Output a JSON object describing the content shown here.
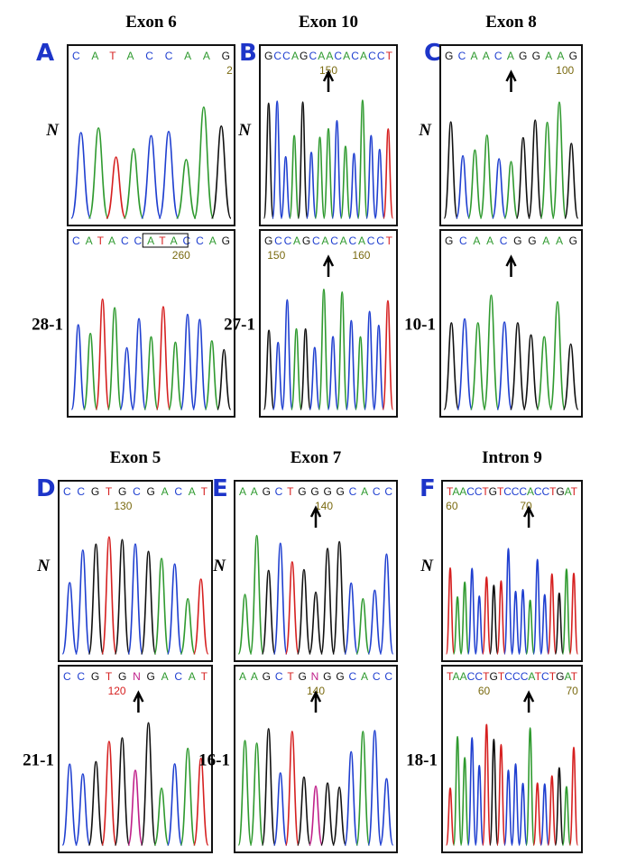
{
  "panels": [
    {
      "letter": "A",
      "title": "Exon 6",
      "rows": [
        {
          "label": "N",
          "sequence": "CATACCAAG",
          "numbers": [
            2
          ]
        },
        {
          "label": "28-1",
          "sequence": "CATACCATACCAG",
          "numbers": [
            260
          ]
        }
      ]
    },
    {
      "letter": "B",
      "title": "Exon 10",
      "rows": [
        {
          "label": "N",
          "sequence": "GCCAGCAACACACCT",
          "numbers": [
            150
          ]
        },
        {
          "label": "27-1",
          "sequence": "GCCAGCACACACCT",
          "numbers": [
            150,
            160
          ]
        }
      ]
    },
    {
      "letter": "C",
      "title": "Exon 8",
      "rows": [
        {
          "label": "N",
          "sequence": "GCAACAGGAAG",
          "numbers": [
            100
          ]
        },
        {
          "label": "10-1",
          "sequence": "GCAACGGAAG",
          "numbers": []
        }
      ]
    },
    {
      "letter": "D",
      "title": "Exon 5",
      "rows": [
        {
          "label": "N",
          "sequence": "CCGTGCGACAT",
          "numbers": [
            130
          ]
        },
        {
          "label": "21-1",
          "sequence": "CCGTGNGACAT",
          "numbers": [
            120
          ]
        }
      ]
    },
    {
      "letter": "E",
      "title": "Exon 7",
      "rows": [
        {
          "label": "N",
          "sequence": "AAGCTGGGGCACC",
          "numbers": [
            140
          ]
        },
        {
          "label": "16-1",
          "sequence": "AAGCTGNGGCACC",
          "numbers": [
            140
          ]
        }
      ]
    },
    {
      "letter": "F",
      "title": "Intron 9",
      "rows": [
        {
          "label": "N",
          "sequence": "TAACCTGTCCCACCTGAT",
          "numbers": [
            60,
            70
          ]
        },
        {
          "label": "18-1",
          "sequence": "TAACCTGTCCCATCTGAT",
          "numbers": [
            60,
            70
          ]
        }
      ]
    }
  ]
}
